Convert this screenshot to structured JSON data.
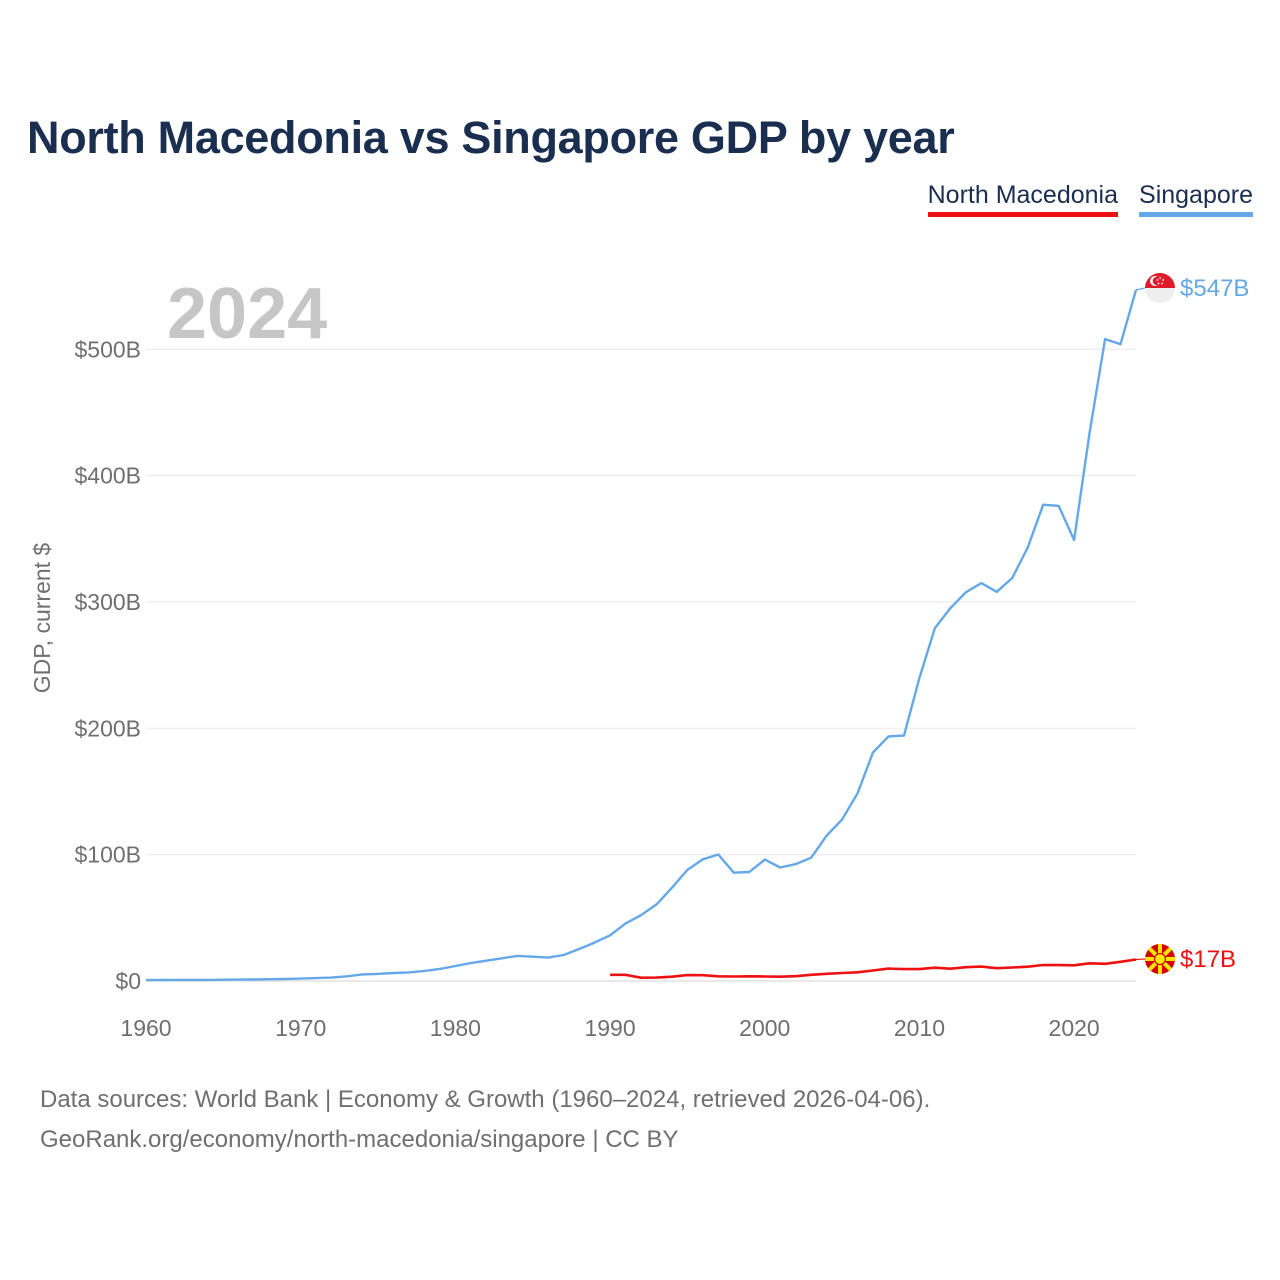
{
  "title": "North Macedonia vs Singapore GDP by year",
  "legend": [
    {
      "label": "North Macedonia",
      "color": "#ee1111"
    },
    {
      "label": "Singapore",
      "color": "#64a8e8"
    }
  ],
  "footer": {
    "line1": "Data sources: World Bank | Economy & Growth (1960–2024, retrieved 2026-04-06).",
    "line2": "GeoRank.org/economy/north-macedonia/singapore | CC BY"
  },
  "chart_data": {
    "type": "line",
    "year_label": "2024",
    "ylabel": "GDP, current $",
    "xlabel": "",
    "xlim": [
      1960,
      2024
    ],
    "ylim": [
      0,
      547
    ],
    "x_ticks": [
      1960,
      1970,
      1980,
      1990,
      2000,
      2010,
      2020
    ],
    "y_ticks": [
      {
        "value": 0,
        "label": "$0"
      },
      {
        "value": 100,
        "label": "$100B"
      },
      {
        "value": 200,
        "label": "$200B"
      },
      {
        "value": 300,
        "label": "$300B"
      },
      {
        "value": 400,
        "label": "$400B"
      },
      {
        "value": 500,
        "label": "$500B"
      }
    ],
    "grid": true,
    "series": [
      {
        "name": "Singapore",
        "color": "#64a8e8",
        "end_label": "$547B",
        "flag": "singapore-flag",
        "start_year": 1960,
        "values": [
          0.7,
          0.8,
          0.9,
          0.9,
          0.9,
          1.0,
          1.1,
          1.2,
          1.4,
          1.6,
          1.9,
          2.3,
          2.7,
          3.7,
          5.2,
          5.6,
          6.3,
          6.8,
          8.0,
          9.6,
          11.9,
          14.2,
          16.1,
          18.0,
          19.9,
          19.2,
          18.5,
          20.6,
          25.3,
          30.4,
          36.2,
          45.5,
          52.1,
          60.6,
          73.8,
          87.9,
          96.3,
          100.1,
          85.7,
          86.3,
          96.1,
          89.8,
          92.5,
          97.6,
          115.0,
          127.8,
          148.6,
          180.9,
          193.6,
          194.2,
          239.8,
          279.4,
          295.1,
          307.6,
          314.9,
          308.0,
          319.0,
          343.0,
          377.0,
          376.0,
          349.0,
          434.0,
          508.0,
          504.0,
          547.0
        ]
      },
      {
        "name": "North Macedonia",
        "color": "#ee1111",
        "end_label": "$17B",
        "flag": "north-macedonia-flag",
        "start_year": 1990,
        "values": [
          4.9,
          4.9,
          2.6,
          2.7,
          3.4,
          4.7,
          4.6,
          3.7,
          3.6,
          3.7,
          3.6,
          3.4,
          3.8,
          4.9,
          5.7,
          6.3,
          6.9,
          8.3,
          9.8,
          9.4,
          9.4,
          10.5,
          9.7,
          10.9,
          11.4,
          10.1,
          10.7,
          11.3,
          12.7,
          12.6,
          12.4,
          14.0,
          13.6,
          15.2,
          17.0
        ]
      }
    ]
  }
}
